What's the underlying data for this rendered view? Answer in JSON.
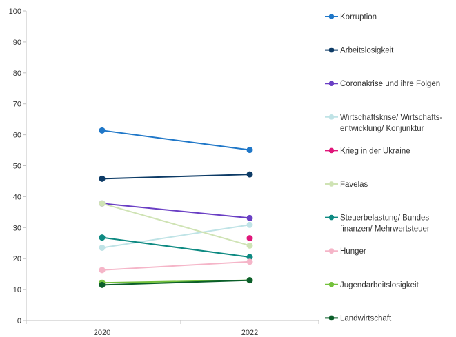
{
  "chart_data": {
    "type": "line",
    "title": "",
    "xlabel": "",
    "ylabel": "",
    "x": [
      "2020",
      "2022"
    ],
    "ylim": [
      0,
      100
    ],
    "yticks": [
      0,
      10,
      20,
      30,
      40,
      50,
      60,
      70,
      80,
      90,
      100
    ],
    "grid": false,
    "legend_position": "right",
    "series": [
      {
        "name": "Korruption",
        "color": "#1f77c8",
        "values": [
          61.4,
          55.1
        ]
      },
      {
        "name": "Arbeitslosigkeit",
        "color": "#0d3b66",
        "values": [
          45.8,
          47.2
        ]
      },
      {
        "name": "Coronakrise und ihre Folgen",
        "color": "#6a3fc4",
        "values": [
          37.8,
          33.1
        ]
      },
      {
        "name": "Wirtschaftskrise/ Wirtschafts-entwicklung/ Konjunktur",
        "lines": [
          "Wirtschaftskrise/ Wirtschafts-",
          "entwicklung/ Konjunktur"
        ],
        "color": "#bfe3e6",
        "values": [
          23.5,
          30.9
        ]
      },
      {
        "name": "Krieg in der Ukraine",
        "color": "#e0167a",
        "values": [
          null,
          26.6
        ]
      },
      {
        "name": "Favelas",
        "color": "#cfe3b4",
        "values": [
          37.8,
          24.2
        ]
      },
      {
        "name": "Steuerbelastung/ Bundes-finanzen/ Mehrwertsteuer",
        "lines": [
          "Steuerbelastung/ Bundes-",
          "finanzen/ Mehrwertsteuer"
        ],
        "color": "#0e8a82",
        "values": [
          26.8,
          20.5
        ]
      },
      {
        "name": "Hunger",
        "color": "#f5b5c8",
        "values": [
          16.3,
          19.0
        ]
      },
      {
        "name": "Jugendarbeitslosigkeit",
        "color": "#74c13c",
        "values": [
          12.2,
          13.0
        ]
      },
      {
        "name": "Landwirtschaft",
        "color": "#0b5e2a",
        "values": [
          11.5,
          13.0
        ]
      }
    ]
  }
}
